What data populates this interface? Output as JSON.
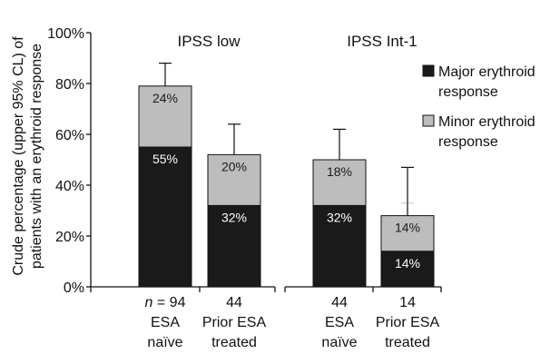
{
  "chart_data": {
    "type": "bar",
    "stacked": true,
    "ylabel_lines": [
      "Crude percentage (upper 95% CL) of",
      "patients with an erythroid response"
    ],
    "ylim": [
      0,
      100
    ],
    "yticks": [
      0,
      20,
      40,
      60,
      80,
      100
    ],
    "ytick_labels": [
      "0%",
      "20%",
      "40%",
      "60%",
      "80%",
      "100%"
    ],
    "groups": [
      "IPSS low",
      "IPSS Int-1"
    ],
    "categories": [
      {
        "group": "IPSS low",
        "n_prefix": "n",
        "n_suffix": " = 94",
        "label_lines": [
          "ESA",
          "naïve"
        ]
      },
      {
        "group": "IPSS low",
        "n_prefix": "",
        "n_suffix": "44",
        "label_lines": [
          "Prior ESA",
          "treated"
        ]
      },
      {
        "group": "IPSS Int-1",
        "n_prefix": "",
        "n_suffix": "44",
        "label_lines": [
          "ESA",
          "naïve"
        ]
      },
      {
        "group": "IPSS Int-1",
        "n_prefix": "",
        "n_suffix": "14",
        "label_lines": [
          "Prior ESA",
          "treated"
        ]
      }
    ],
    "series": [
      {
        "name_lines": [
          "Major erythroid",
          "response"
        ],
        "color": "#1a1a1a",
        "label_color": "#ffffff",
        "values": [
          55,
          32,
          32,
          14
        ],
        "value_labels": [
          "55%",
          "32%",
          "32%",
          "14%"
        ],
        "upper_cl": [
          65,
          46,
          46,
          33
        ]
      },
      {
        "name_lines": [
          "Minor erythroid",
          "response"
        ],
        "color": "#bdbdbd",
        "label_color": "#1a1a1a",
        "values": [
          24,
          20,
          18,
          14
        ],
        "value_labels": [
          "24%",
          "20%",
          "18%",
          "14%"
        ],
        "upper_cl": [
          88,
          64,
          62,
          47
        ]
      }
    ],
    "legend_position": "right",
    "grid": false
  }
}
